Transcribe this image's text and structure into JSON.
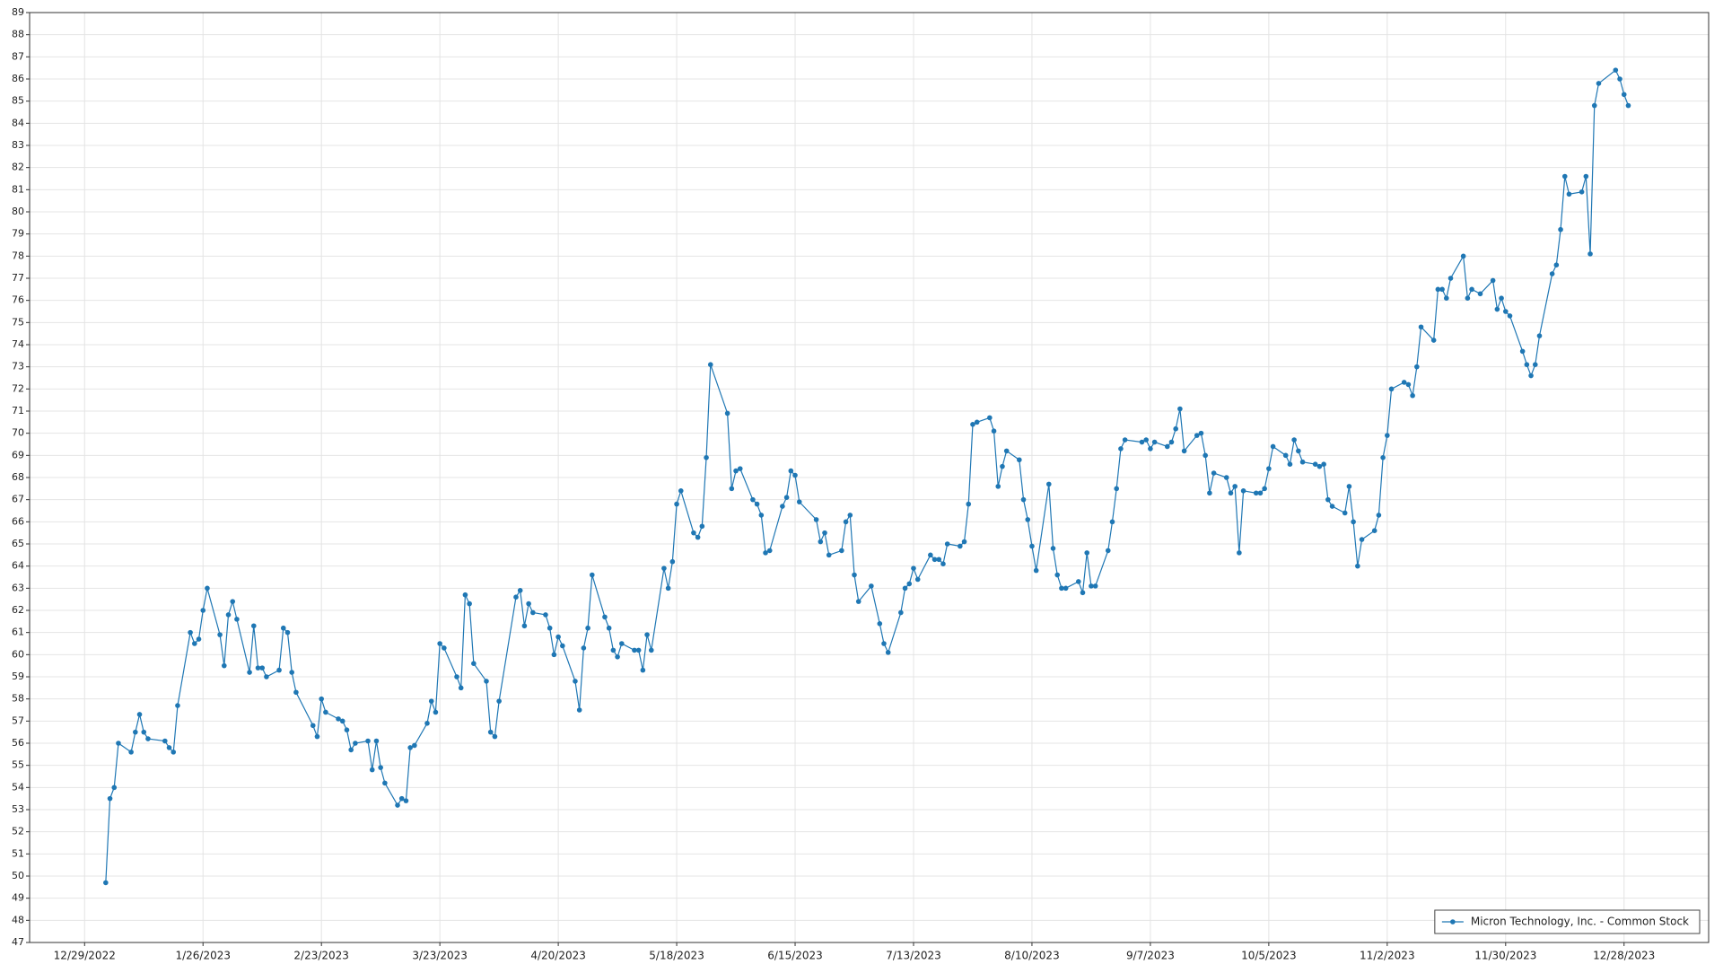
{
  "chart_data": {
    "type": "line",
    "x": [
      "1/3/2023",
      "1/4/2023",
      "1/5/2023",
      "1/6/2023",
      "1/9/2023",
      "1/10/2023",
      "1/11/2023",
      "1/12/2023",
      "1/13/2023",
      "1/17/2023",
      "1/18/2023",
      "1/19/2023",
      "1/20/2023",
      "1/23/2023",
      "1/24/2023",
      "1/25/2023",
      "1/26/2023",
      "1/27/2023",
      "1/30/2023",
      "1/31/2023",
      "2/1/2023",
      "2/2/2023",
      "2/3/2023",
      "2/6/2023",
      "2/7/2023",
      "2/8/2023",
      "2/9/2023",
      "2/10/2023",
      "2/13/2023",
      "2/14/2023",
      "2/15/2023",
      "2/16/2023",
      "2/17/2023",
      "2/21/2023",
      "2/22/2023",
      "2/23/2023",
      "2/24/2023",
      "2/27/2023",
      "2/28/2023",
      "3/1/2023",
      "3/2/2023",
      "3/3/2023",
      "3/6/2023",
      "3/7/2023",
      "3/8/2023",
      "3/9/2023",
      "3/10/2023",
      "3/13/2023",
      "3/14/2023",
      "3/15/2023",
      "3/16/2023",
      "3/17/2023",
      "3/20/2023",
      "3/21/2023",
      "3/22/2023",
      "3/23/2023",
      "3/24/2023",
      "3/27/2023",
      "3/28/2023",
      "3/29/2023",
      "3/30/2023",
      "3/31/2023",
      "4/3/2023",
      "4/4/2023",
      "4/5/2023",
      "4/6/2023",
      "4/10/2023",
      "4/11/2023",
      "4/12/2023",
      "4/13/2023",
      "4/14/2023",
      "4/17/2023",
      "4/18/2023",
      "4/19/2023",
      "4/20/2023",
      "4/21/2023",
      "4/24/2023",
      "4/25/2023",
      "4/26/2023",
      "4/27/2023",
      "4/28/2023",
      "5/1/2023",
      "5/2/2023",
      "5/3/2023",
      "5/4/2023",
      "5/5/2023",
      "5/8/2023",
      "5/9/2023",
      "5/10/2023",
      "5/11/2023",
      "5/12/2023",
      "5/15/2023",
      "5/16/2023",
      "5/17/2023",
      "5/18/2023",
      "5/19/2023",
      "5/22/2023",
      "5/23/2023",
      "5/24/2023",
      "5/25/2023",
      "5/26/2023",
      "5/30/2023",
      "5/31/2023",
      "6/1/2023",
      "6/2/2023",
      "6/5/2023",
      "6/6/2023",
      "6/7/2023",
      "6/8/2023",
      "6/9/2023",
      "6/12/2023",
      "6/13/2023",
      "6/14/2023",
      "6/15/2023",
      "6/16/2023",
      "6/20/2023",
      "6/21/2023",
      "6/22/2023",
      "6/23/2023",
      "6/26/2023",
      "6/27/2023",
      "6/28/2023",
      "6/29/2023",
      "6/30/2023",
      "7/3/2023",
      "7/5/2023",
      "7/6/2023",
      "7/7/2023",
      "7/10/2023",
      "7/11/2023",
      "7/12/2023",
      "7/13/2023",
      "7/14/2023",
      "7/17/2023",
      "7/18/2023",
      "7/19/2023",
      "7/20/2023",
      "7/21/2023",
      "7/24/2023",
      "7/25/2023",
      "7/26/2023",
      "7/27/2023",
      "7/28/2023",
      "7/31/2023",
      "8/1/2023",
      "8/2/2023",
      "8/3/2023",
      "8/4/2023",
      "8/7/2023",
      "8/8/2023",
      "8/9/2023",
      "8/10/2023",
      "8/11/2023",
      "8/14/2023",
      "8/15/2023",
      "8/16/2023",
      "8/17/2023",
      "8/18/2023",
      "8/21/2023",
      "8/22/2023",
      "8/23/2023",
      "8/24/2023",
      "8/25/2023",
      "8/28/2023",
      "8/29/2023",
      "8/30/2023",
      "8/31/2023",
      "9/1/2023",
      "9/5/2023",
      "9/6/2023",
      "9/7/2023",
      "9/8/2023",
      "9/11/2023",
      "9/12/2023",
      "9/13/2023",
      "9/14/2023",
      "9/15/2023",
      "9/18/2023",
      "9/19/2023",
      "9/20/2023",
      "9/21/2023",
      "9/22/2023",
      "9/25/2023",
      "9/26/2023",
      "9/27/2023",
      "9/28/2023",
      "9/29/2023",
      "10/2/2023",
      "10/3/2023",
      "10/4/2023",
      "10/5/2023",
      "10/6/2023",
      "10/9/2023",
      "10/10/2023",
      "10/11/2023",
      "10/12/2023",
      "10/13/2023",
      "10/16/2023",
      "10/17/2023",
      "10/18/2023",
      "10/19/2023",
      "10/20/2023",
      "10/23/2023",
      "10/24/2023",
      "10/25/2023",
      "10/26/2023",
      "10/27/2023",
      "10/30/2023",
      "10/31/2023",
      "11/1/2023",
      "11/2/2023",
      "11/3/2023",
      "11/6/2023",
      "11/7/2023",
      "11/8/2023",
      "11/9/2023",
      "11/10/2023",
      "11/13/2023",
      "11/14/2023",
      "11/15/2023",
      "11/16/2023",
      "11/17/2023",
      "11/20/2023",
      "11/21/2023",
      "11/22/2023",
      "11/24/2023",
      "11/27/2023",
      "11/28/2023",
      "11/29/2023",
      "11/30/2023",
      "12/1/2023",
      "12/4/2023",
      "12/5/2023",
      "12/6/2023",
      "12/7/2023",
      "12/8/2023",
      "12/11/2023",
      "12/12/2023",
      "12/13/2023",
      "12/14/2023",
      "12/15/2023",
      "12/18/2023",
      "12/19/2023",
      "12/20/2023",
      "12/21/2023",
      "12/22/2023",
      "12/26/2023",
      "12/27/2023",
      "12/28/2023",
      "12/29/2023"
    ],
    "series": [
      {
        "name": "Micron Technology, Inc. - Common Stock",
        "color": "#1f77b4",
        "values": [
          49.7,
          53.5,
          54.0,
          56.0,
          55.6,
          56.5,
          57.3,
          56.5,
          56.2,
          56.1,
          55.8,
          55.6,
          57.7,
          61.0,
          60.5,
          60.7,
          62.0,
          63.0,
          60.9,
          59.5,
          61.8,
          62.4,
          61.6,
          59.2,
          61.3,
          59.4,
          59.4,
          59.0,
          59.3,
          61.2,
          61.0,
          59.2,
          58.3,
          56.8,
          56.3,
          58.0,
          57.4,
          57.1,
          57.0,
          56.6,
          55.7,
          56.0,
          56.1,
          54.8,
          56.1,
          54.9,
          54.2,
          53.2,
          53.5,
          53.4,
          55.8,
          55.9,
          56.9,
          57.9,
          57.4,
          60.5,
          60.3,
          59.0,
          58.5,
          62.7,
          62.3,
          59.6,
          58.8,
          56.5,
          56.3,
          57.9,
          62.6,
          62.9,
          61.3,
          62.3,
          61.9,
          61.8,
          61.2,
          60.0,
          60.8,
          60.4,
          58.8,
          57.5,
          60.3,
          61.2,
          63.6,
          61.7,
          61.2,
          60.2,
          59.9,
          60.5,
          60.2,
          60.2,
          59.3,
          60.9,
          60.2,
          63.9,
          63.0,
          64.2,
          66.8,
          67.4,
          65.5,
          65.3,
          65.8,
          68.9,
          73.1,
          70.9,
          67.5,
          68.3,
          68.4,
          67.0,
          66.8,
          66.3,
          64.6,
          64.7,
          66.7,
          67.1,
          68.3,
          68.1,
          66.9,
          66.1,
          65.1,
          65.5,
          64.5,
          64.7,
          66.0,
          66.3,
          63.6,
          62.4,
          63.1,
          61.4,
          60.5,
          60.1,
          61.9,
          63.0,
          63.2,
          63.9,
          63.4,
          64.5,
          64.3,
          64.3,
          64.1,
          65.0,
          64.9,
          65.1,
          66.8,
          70.4,
          70.5,
          70.7,
          70.1,
          67.6,
          68.5,
          69.2,
          68.8,
          67.0,
          66.1,
          64.9,
          63.8,
          67.7,
          64.8,
          63.6,
          63.0,
          63.0,
          63.3,
          62.8,
          64.6,
          63.1,
          63.1,
          64.7,
          66.0,
          67.5,
          69.3,
          69.7,
          69.6,
          69.7,
          69.3,
          69.6,
          69.4,
          69.6,
          70.2,
          71.1,
          69.2,
          69.9,
          70.0,
          69.0,
          67.3,
          68.2,
          68.0,
          67.3,
          67.6,
          64.6,
          67.4,
          67.3,
          67.3,
          67.5,
          68.4,
          69.4,
          69.0,
          68.6,
          69.7,
          69.2,
          68.7,
          68.6,
          68.5,
          68.6,
          67.0,
          66.7,
          66.4,
          67.6,
          66.0,
          64.0,
          65.2,
          65.6,
          66.3,
          68.9,
          69.9,
          72.0,
          72.3,
          72.2,
          71.7,
          73.0,
          74.8,
          74.2,
          76.5,
          76.5,
          76.1,
          77.0,
          78.0,
          76.1,
          76.5,
          76.3,
          76.9,
          75.6,
          76.1,
          75.5,
          75.3,
          73.7,
          73.1,
          72.6,
          73.1,
          74.4,
          77.2,
          77.6,
          79.2,
          81.6,
          80.8,
          80.9,
          81.6,
          78.1,
          84.8,
          85.8,
          86.4,
          86.0,
          85.3,
          84.8
        ]
      }
    ],
    "xlim": [
      "12/16/2022",
      "1/17/2024"
    ],
    "xticks": [
      "12/29/2022",
      "1/26/2023",
      "2/23/2023",
      "3/23/2023",
      "4/20/2023",
      "5/18/2023",
      "6/15/2023",
      "7/13/2023",
      "8/10/2023",
      "9/7/2023",
      "10/5/2023",
      "11/2/2023",
      "11/30/2023",
      "12/28/2023"
    ],
    "ylim": [
      47,
      89
    ],
    "yticks": [
      47,
      48,
      49,
      50,
      51,
      52,
      53,
      54,
      55,
      56,
      57,
      58,
      59,
      60,
      61,
      62,
      63,
      64,
      65,
      66,
      67,
      68,
      69,
      70,
      71,
      72,
      73,
      74,
      75,
      76,
      77,
      78,
      79,
      80,
      81,
      82,
      83,
      84,
      85,
      86,
      87,
      88,
      89
    ],
    "grid": true,
    "markers": true,
    "legend": "lower right"
  }
}
